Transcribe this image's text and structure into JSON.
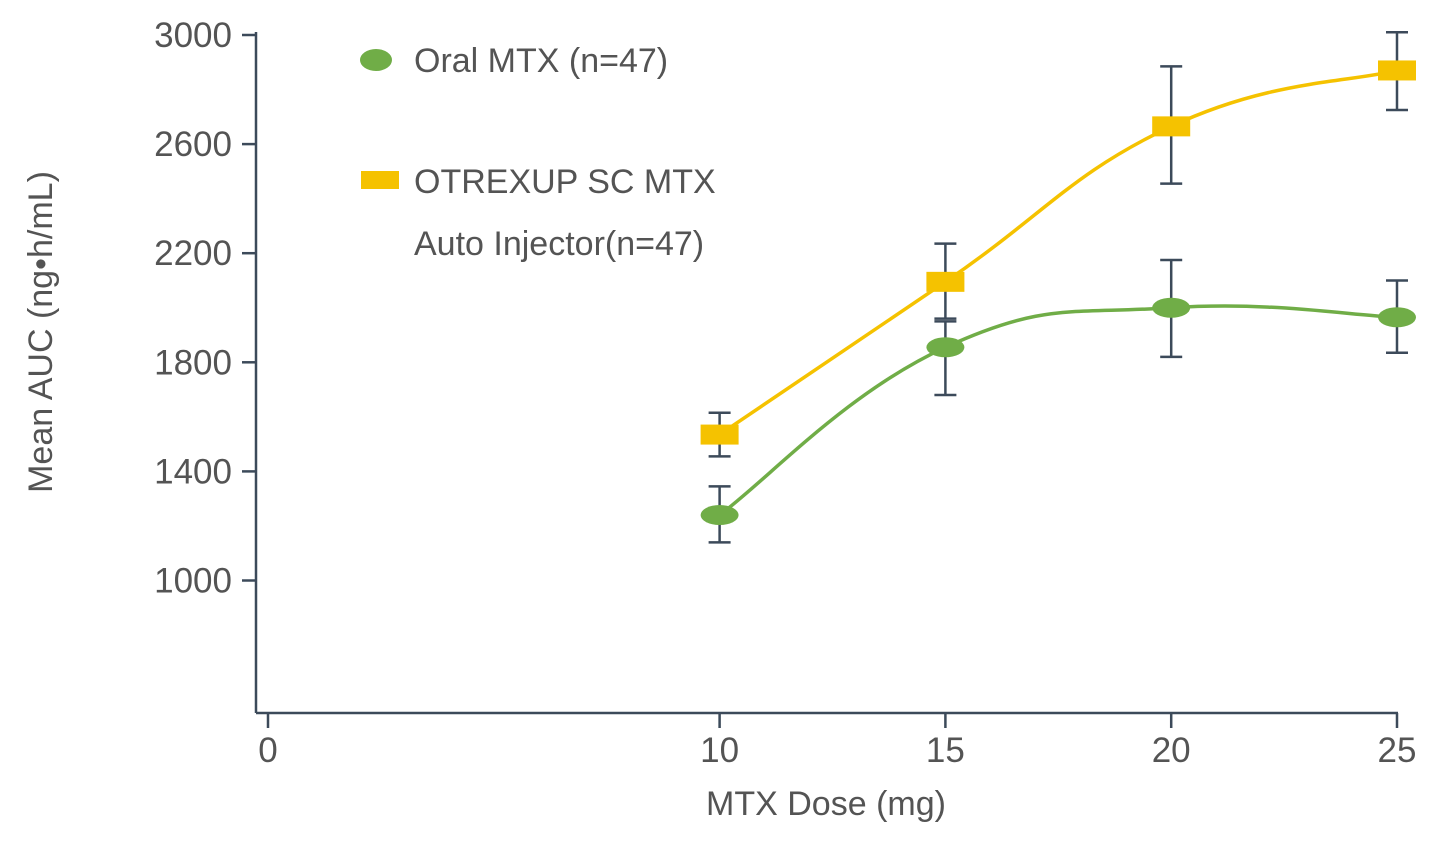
{
  "chart_data": {
    "type": "line",
    "xlabel": "MTX Dose (mg)",
    "ylabel": "Mean AUC (ng•h/mL)",
    "xlim": [
      0,
      25
    ],
    "ylim": [
      500,
      3000
    ],
    "x_ticks": [
      "0",
      "10",
      "15",
      "20",
      "25"
    ],
    "y_ticks": [
      "1000",
      "1400",
      "1800",
      "2200",
      "2600",
      "3000"
    ],
    "grid": false,
    "legend_position": "top-left",
    "series": [
      {
        "name": "Oral MTX (n=47)",
        "color": "#70ad47",
        "marker": "ellipse",
        "x": [
          10,
          15,
          20,
          25
        ],
        "y": [
          1240,
          1855,
          2000,
          1965
        ],
        "error_upper": [
          1345,
          1950,
          2175,
          2100
        ],
        "error_lower": [
          1140,
          1680,
          1820,
          1835
        ]
      },
      {
        "name_lines": [
          "OTREXUP SC MTX",
          "Auto Injector(n=47)"
        ],
        "color": "#f5c200",
        "marker": "square",
        "x": [
          10,
          15,
          20,
          25
        ],
        "y": [
          1535,
          2095,
          2665,
          2870
        ],
        "error_upper": [
          1615,
          2235,
          2885,
          3010
        ],
        "error_lower": [
          1455,
          1960,
          2455,
          2725
        ]
      }
    ]
  }
}
